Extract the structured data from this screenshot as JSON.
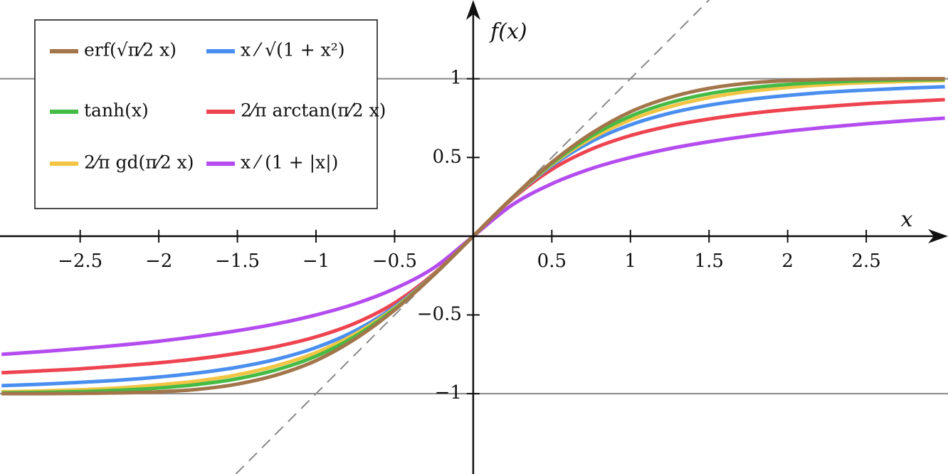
{
  "chart_data": {
    "type": "line",
    "x_label": "x",
    "y_label": "f(x)",
    "x": [
      -3,
      -2.75,
      -2.5,
      -2.25,
      -2,
      -1.75,
      -1.5,
      -1.25,
      -1,
      -0.75,
      -0.5,
      -0.25,
      0,
      0.25,
      0.5,
      0.75,
      1,
      1.25,
      1.5,
      1.75,
      2,
      2.25,
      2.5,
      2.75,
      3
    ],
    "xlim": [
      -3.01,
      3.02
    ],
    "ylim": [
      -1.51,
      1.5
    ],
    "xticks": [
      {
        "value": -2.5,
        "label": "−2.5"
      },
      {
        "value": -2,
        "label": "−2"
      },
      {
        "value": -1.5,
        "label": "−1.5"
      },
      {
        "value": -1,
        "label": "−1"
      },
      {
        "value": -0.5,
        "label": "−0.5"
      },
      0.5,
      1,
      1.5,
      2,
      2.5
    ],
    "yticks": [
      {
        "value": -1,
        "label": "−1"
      },
      {
        "value": -0.5,
        "label": "−0.5"
      },
      0.5,
      1
    ],
    "reference_lines": [
      -1,
      1
    ],
    "identity_line": true,
    "legend": "upper left",
    "series": [
      {
        "name": "erf(√π⁄2 x)",
        "color": "#a3754a",
        "values": [
          -0.9998,
          -0.9996,
          -0.998,
          -0.995,
          -0.988,
          -0.972,
          -0.939,
          -0.881,
          -0.79,
          -0.652,
          -0.469,
          -0.246,
          0,
          0.246,
          0.469,
          0.652,
          0.79,
          0.881,
          0.939,
          0.972,
          0.988,
          0.995,
          0.998,
          0.9996,
          0.9998
        ]
      },
      {
        "name": "tanh(x)",
        "color": "#45bb45",
        "values": [
          -0.995,
          -0.992,
          -0.987,
          -0.978,
          -0.964,
          -0.941,
          -0.905,
          -0.848,
          -0.762,
          -0.635,
          -0.462,
          -0.245,
          0,
          0.245,
          0.462,
          0.635,
          0.762,
          0.848,
          0.905,
          0.941,
          0.964,
          0.978,
          0.987,
          0.992,
          0.995
        ]
      },
      {
        "name": "2⁄π gd(π⁄2 x)",
        "color": "#f2c443",
        "values": [
          -0.988,
          -0.983,
          -0.975,
          -0.963,
          -0.944,
          -0.919,
          -0.88,
          -0.822,
          -0.739,
          -0.62,
          -0.456,
          -0.244,
          0,
          0.244,
          0.456,
          0.62,
          0.739,
          0.822,
          0.88,
          0.919,
          0.944,
          0.963,
          0.975,
          0.983,
          0.988
        ]
      },
      {
        "name": "x ⁄ √(1 + x²)",
        "color": "#4a8ff0",
        "values": [
          -0.949,
          -0.94,
          -0.928,
          -0.914,
          -0.894,
          -0.868,
          -0.832,
          -0.781,
          -0.707,
          -0.6,
          -0.447,
          -0.243,
          0,
          0.243,
          0.447,
          0.6,
          0.707,
          0.781,
          0.832,
          0.868,
          0.894,
          0.914,
          0.928,
          0.94,
          0.949
        ]
      },
      {
        "name": "2⁄π arctan(π⁄2 x)",
        "color": "#ee4450",
        "values": [
          -0.867,
          -0.855,
          -0.842,
          -0.824,
          -0.804,
          -0.778,
          -0.744,
          -0.7,
          -0.639,
          -0.552,
          -0.424,
          -0.238,
          0,
          0.238,
          0.424,
          0.552,
          0.639,
          0.7,
          0.744,
          0.778,
          0.804,
          0.824,
          0.842,
          0.855,
          0.867
        ]
      },
      {
        "name": "x ⁄ (1 + |x|)",
        "color": "#b44cf0",
        "values": [
          -0.75,
          -0.733,
          -0.714,
          -0.692,
          -0.667,
          -0.636,
          -0.6,
          -0.556,
          -0.5,
          -0.429,
          -0.333,
          -0.2,
          0,
          0.2,
          0.333,
          0.429,
          0.5,
          0.556,
          0.6,
          0.636,
          0.667,
          0.692,
          0.714,
          0.733,
          0.75
        ]
      }
    ]
  }
}
